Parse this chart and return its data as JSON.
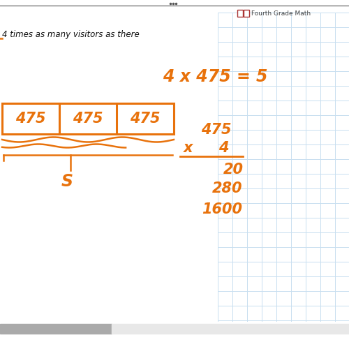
{
  "bg_color": "#ffffff",
  "grid_color": "#c8dff0",
  "orange": "#E8720C",
  "top_text": "Fourth Grade Math",
  "partial_text": "4 times as many visitors as there",
  "equation": "4×475=5",
  "array_label": "S",
  "algo_label": "S"
}
